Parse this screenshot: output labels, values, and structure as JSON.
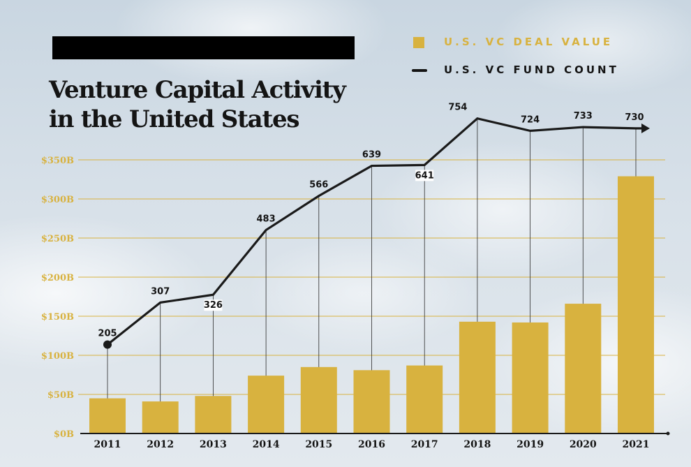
{
  "header": {
    "title_line1": "Venture Capital Activity",
    "title_line2": "in the United States"
  },
  "legend": {
    "deal_value_label": "U.S. VC DEAL VALUE",
    "fund_count_label": "U.S. VC FUND COUNT"
  },
  "colors": {
    "bar": "#d8b23f",
    "line": "#1a1a1a",
    "grid": "#d8b23f",
    "axis": "#1a1a1a"
  },
  "chart_data": {
    "type": "bar",
    "title": "Venture Capital Activity in the United States",
    "categories": [
      "2011",
      "2012",
      "2013",
      "2014",
      "2015",
      "2016",
      "2017",
      "2018",
      "2019",
      "2020",
      "2021"
    ],
    "series": [
      {
        "name": "U.S. VC DEAL VALUE",
        "type": "bar",
        "axis": "left",
        "values": [
          45,
          41,
          48,
          74,
          85,
          81,
          87,
          143,
          142,
          166,
          329
        ]
      },
      {
        "name": "U.S. VC FUND COUNT",
        "type": "line",
        "axis": "right",
        "values": [
          205,
          307,
          326,
          483,
          566,
          639,
          641,
          754,
          724,
          733,
          730
        ],
        "labels": [
          "205",
          "307",
          "326",
          "483",
          "566",
          "639",
          "641",
          "754",
          "724",
          "733",
          "730"
        ]
      }
    ],
    "y_axis": {
      "ylim": [
        0,
        350
      ],
      "ticks": [
        0,
        50,
        100,
        150,
        200,
        250,
        300,
        350
      ],
      "tick_labels": [
        "$0B",
        "$50B",
        "$100B",
        "$150B",
        "$200B",
        "$250B",
        "$300B",
        "$350B"
      ]
    },
    "grid": true,
    "legend_position": "top-right"
  }
}
